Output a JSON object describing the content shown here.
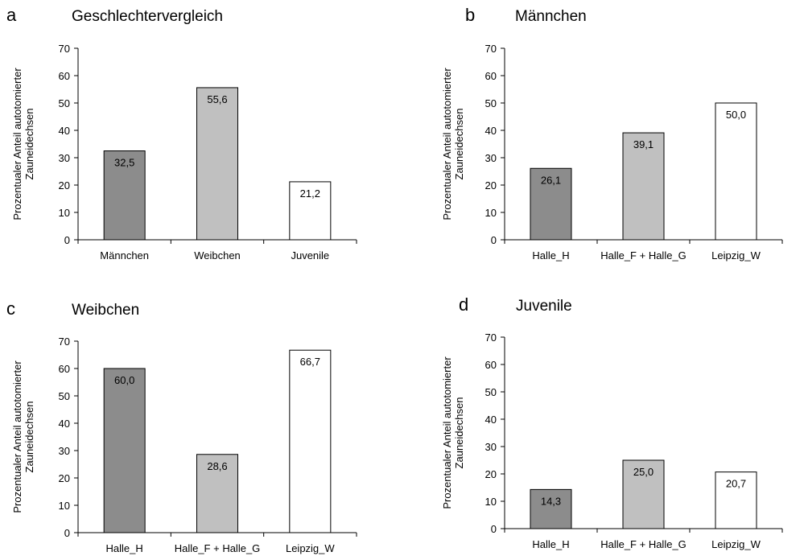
{
  "figure": {
    "ylabel_line1": "Prozentualer Anteil autotomierter",
    "ylabel_line2": "Zauneidechsen"
  },
  "chart_data": [
    {
      "panel": "a",
      "type": "bar",
      "title": "Geschlechtervergleich",
      "categories": [
        "Männchen",
        "Weibchen",
        "Juvenile"
      ],
      "values": [
        32.5,
        55.6,
        21.2
      ],
      "value_labels": [
        "32,5",
        "55,6",
        "21,2"
      ],
      "bar_colors": [
        "#8c8c8c",
        "#c0c0c0",
        "#ffffff"
      ],
      "ylim": [
        0,
        70
      ],
      "yticks": [
        0,
        10,
        20,
        30,
        40,
        50,
        60,
        70
      ],
      "ylabel": "Prozentualer Anteil autotomierter Zauneidechsen",
      "grid": false,
      "legend": false
    },
    {
      "panel": "b",
      "type": "bar",
      "title": "Männchen",
      "categories": [
        "Halle_H",
        "Halle_F + Halle_G",
        "Leipzig_W"
      ],
      "values": [
        26.1,
        39.1,
        50.0
      ],
      "value_labels": [
        "26,1",
        "39,1",
        "50,0"
      ],
      "bar_colors": [
        "#8c8c8c",
        "#c0c0c0",
        "#ffffff"
      ],
      "ylim": [
        0,
        70
      ],
      "yticks": [
        0,
        10,
        20,
        30,
        40,
        50,
        60,
        70
      ],
      "ylabel": "Prozentualer Anteil autotomierter Zauneidechsen",
      "grid": false,
      "legend": false
    },
    {
      "panel": "c",
      "type": "bar",
      "title": "Weibchen",
      "categories": [
        "Halle_H",
        "Halle_F + Halle_G",
        "Leipzig_W"
      ],
      "values": [
        60.0,
        28.6,
        66.7
      ],
      "value_labels": [
        "60,0",
        "28,6",
        "66,7"
      ],
      "bar_colors": [
        "#8c8c8c",
        "#c0c0c0",
        "#ffffff"
      ],
      "ylim": [
        0,
        70
      ],
      "yticks": [
        0,
        10,
        20,
        30,
        40,
        50,
        60,
        70
      ],
      "ylabel": "Prozentualer Anteil autotomierter Zauneidechsen",
      "grid": false,
      "legend": false
    },
    {
      "panel": "d",
      "type": "bar",
      "title": "Juvenile",
      "categories": [
        "Halle_H",
        "Halle_F + Halle_G",
        "Leipzig_W"
      ],
      "values": [
        14.3,
        25.0,
        20.7
      ],
      "value_labels": [
        "14,3",
        "25,0",
        "20,7"
      ],
      "bar_colors": [
        "#8c8c8c",
        "#c0c0c0",
        "#ffffff"
      ],
      "ylim": [
        0,
        70
      ],
      "yticks": [
        0,
        10,
        20,
        30,
        40,
        50,
        60,
        70
      ],
      "ylabel": "Prozentualer Anteil autotomierter Zauneidechsen",
      "grid": false,
      "legend": false
    }
  ]
}
